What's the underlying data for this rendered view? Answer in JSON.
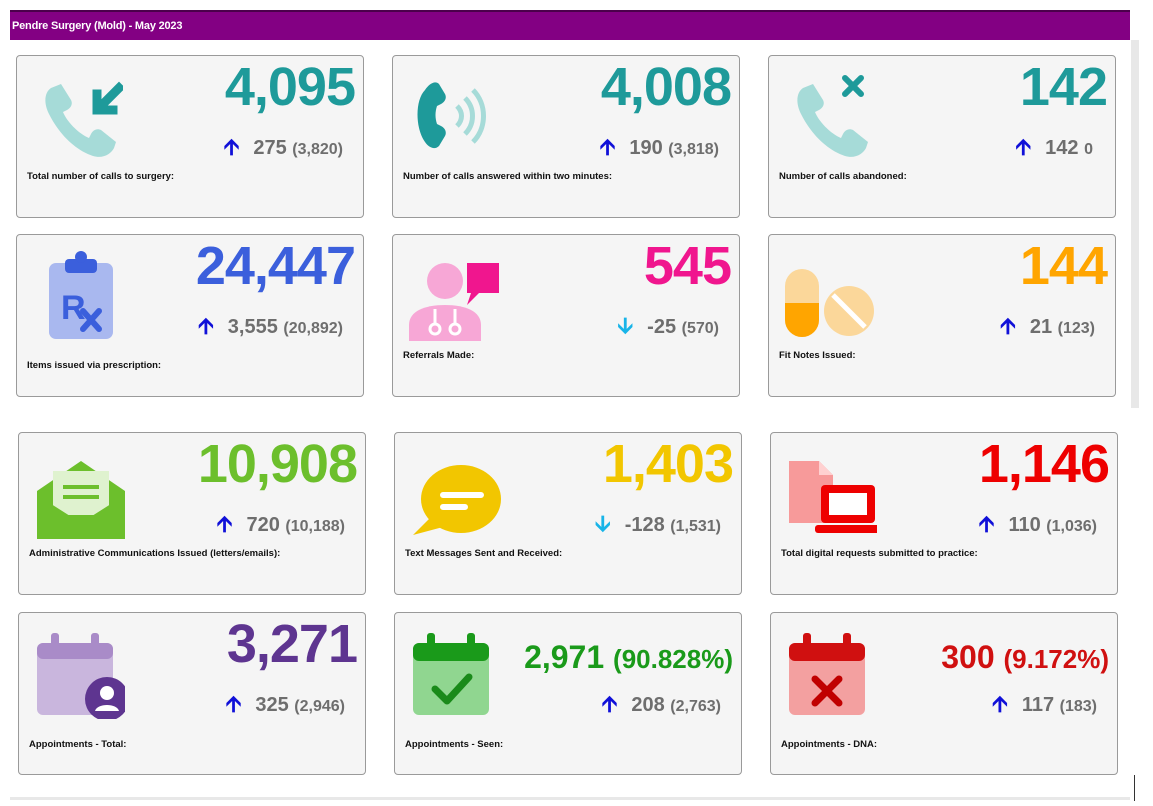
{
  "header": {
    "title": "Pendre Surgery (Mold) - May 2023"
  },
  "colors": {
    "header": "#830083",
    "teal": "#1e9a9a",
    "blue": "#3b5fdc",
    "pink": "#f0168e",
    "orange": "#ffa500",
    "green": "#6cbf2c",
    "yellow": "#f2c600",
    "red": "#ee0000",
    "purple": "#5e3590",
    "dark_green": "#1a9a1a",
    "dark_red": "#d01010",
    "arrow_up": "#1010d8",
    "arrow_down": "#18b4e8"
  },
  "cards": [
    {
      "icon": "phone-incoming-icon",
      "value": "4,095",
      "change": "275",
      "direction": "up",
      "previous": "(3,820)",
      "label": "Total number of calls to surgery:"
    },
    {
      "icon": "phone-ringing-icon",
      "value": "4,008",
      "change": "190",
      "direction": "up",
      "previous": "(3,818)",
      "label": "Number of calls answered within two minutes:"
    },
    {
      "icon": "phone-missed-icon",
      "value": "142",
      "change": "142",
      "direction": "up",
      "previous": "0",
      "label": "Number of calls abandoned:"
    },
    {
      "icon": "prescription-clipboard-icon",
      "value": "24,447",
      "change": "3,555",
      "direction": "up",
      "previous": "(20,892)",
      "label": "Items issued via prescription:"
    },
    {
      "icon": "doctor-referral-icon",
      "value": "545",
      "change": "-25",
      "direction": "down",
      "previous": "(570)",
      "label": "Referrals Made:"
    },
    {
      "icon": "pills-icon",
      "value": "144",
      "change": "21",
      "direction": "up",
      "previous": "(123)",
      "label": "Fit Notes Issued:"
    },
    {
      "icon": "envelope-letter-icon",
      "value": "10,908",
      "change": "720",
      "direction": "up",
      "previous": "(10,188)",
      "label": "Administrative Communications Issued (letters/emails):"
    },
    {
      "icon": "chat-bubble-icon",
      "value": "1,403",
      "change": "-128",
      "direction": "down",
      "previous": "(1,531)",
      "label": "Text Messages Sent and Received:"
    },
    {
      "icon": "digital-request-icon",
      "value": "1,146",
      "change": "110",
      "direction": "up",
      "previous": "(1,036)",
      "label": "Total digital requests submitted to practice:"
    },
    {
      "icon": "calendar-user-icon",
      "value": "3,271",
      "change": "325",
      "direction": "up",
      "previous": "(2,946)",
      "label": "Appointments - Total:"
    },
    {
      "icon": "calendar-check-icon",
      "value": "2,971",
      "percent": "(90.828%)",
      "change": "208",
      "direction": "up",
      "previous": "(2,763)",
      "label": "Appointments - Seen:"
    },
    {
      "icon": "calendar-cross-icon",
      "value": "300",
      "percent": "(9.172%)",
      "change": "117",
      "direction": "up",
      "previous": "(183)",
      "label": "Appointments - DNA:"
    }
  ]
}
